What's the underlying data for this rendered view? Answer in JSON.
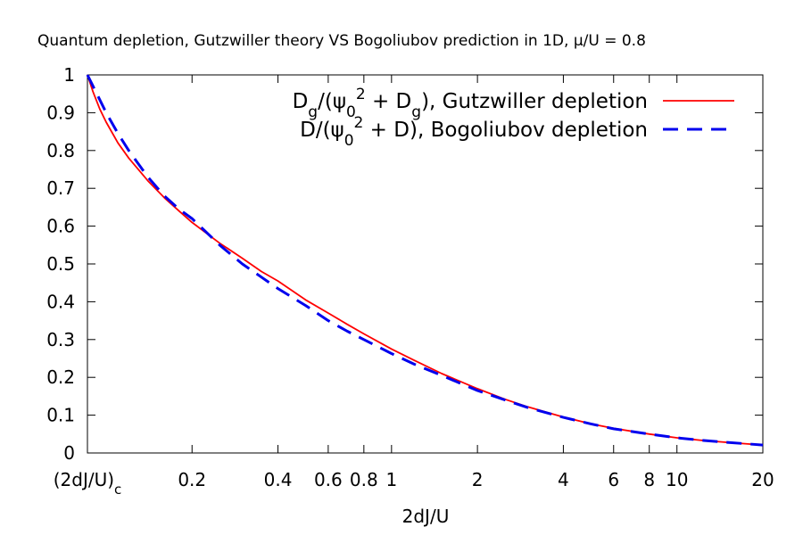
{
  "chart_data": {
    "type": "line",
    "title": "Quantum depletion, Gutzwiller theory VS Bogoliubov prediction in 1D, μ/U = 0.8",
    "xlabel": "2dJ/U",
    "ylabel": "",
    "x_scale": "log",
    "xlim": [
      0.086,
      20
    ],
    "ylim": [
      0,
      1
    ],
    "grid": false,
    "legend_position": "top-right",
    "x_ticks": [
      {
        "value": 0.086,
        "label": "(2dJ/U)",
        "sub": "c"
      },
      {
        "value": 0.2,
        "label": "0.2"
      },
      {
        "value": 0.4,
        "label": "0.4"
      },
      {
        "value": 0.6,
        "label": "0.6"
      },
      {
        "value": 0.8,
        "label": "0.8"
      },
      {
        "value": 1,
        "label": "1"
      },
      {
        "value": 2,
        "label": "2"
      },
      {
        "value": 4,
        "label": "4"
      },
      {
        "value": 6,
        "label": "6"
      },
      {
        "value": 8,
        "label": "8"
      },
      {
        "value": 10,
        "label": "10"
      },
      {
        "value": 20,
        "label": "20"
      }
    ],
    "y_ticks": [
      {
        "value": 0,
        "label": "0"
      },
      {
        "value": 0.1,
        "label": "0.1"
      },
      {
        "value": 0.2,
        "label": "0.2"
      },
      {
        "value": 0.3,
        "label": "0.3"
      },
      {
        "value": 0.4,
        "label": "0.4"
      },
      {
        "value": 0.5,
        "label": "0.5"
      },
      {
        "value": 0.6,
        "label": "0.6"
      },
      {
        "value": 0.7,
        "label": "0.7"
      },
      {
        "value": 0.8,
        "label": "0.8"
      },
      {
        "value": 0.9,
        "label": "0.9"
      },
      {
        "value": 1,
        "label": "1"
      }
    ],
    "series": [
      {
        "name": "Dg/(ψ0^2 + Dg), Gutzwiller depletion",
        "legend": [
          {
            "t": "D"
          },
          {
            "t": "g",
            "sub": true
          },
          {
            "t": "/(ψ"
          },
          {
            "t": "0",
            "sub": true
          },
          {
            "t": "2",
            "sup": true
          },
          {
            "t": " + D"
          },
          {
            "t": "g",
            "sub": true
          },
          {
            "t": "), Gutzwiller depletion"
          }
        ],
        "color": "#ff0000",
        "dash": "solid",
        "x": [
          0.086,
          0.09,
          0.095,
          0.1,
          0.11,
          0.12,
          0.14,
          0.16,
          0.18,
          0.2,
          0.25,
          0.3,
          0.35,
          0.4,
          0.5,
          0.6,
          0.7,
          0.8,
          1,
          1.2,
          1.5,
          2,
          2.5,
          3,
          4,
          5,
          6,
          8,
          10,
          12,
          15,
          20
        ],
        "y": [
          1.0,
          0.955,
          0.91,
          0.875,
          0.82,
          0.78,
          0.72,
          0.675,
          0.64,
          0.61,
          0.555,
          0.515,
          0.48,
          0.455,
          0.405,
          0.37,
          0.34,
          0.315,
          0.275,
          0.245,
          0.21,
          0.17,
          0.142,
          0.122,
          0.095,
          0.077,
          0.065,
          0.05,
          0.04,
          0.034,
          0.028,
          0.021
        ]
      },
      {
        "name": "D/(ψ0^2 + D), Bogoliubov depletion",
        "legend": [
          {
            "t": "D/(ψ"
          },
          {
            "t": "0",
            "sub": true
          },
          {
            "t": "2",
            "sup": true
          },
          {
            "t": " + D), Bogoliubov depletion"
          }
        ],
        "color": "#0000ee",
        "dash": "dashed",
        "x": [
          0.086,
          0.09,
          0.1,
          0.11,
          0.12,
          0.14,
          0.16,
          0.18,
          0.2,
          0.25,
          0.3,
          0.35,
          0.4,
          0.5,
          0.6,
          0.7,
          0.8,
          1,
          1.2,
          1.5,
          2,
          2.5,
          3,
          4,
          5,
          6,
          8,
          10,
          12,
          15,
          20
        ],
        "y": [
          1.0,
          0.97,
          0.9,
          0.845,
          0.8,
          0.73,
          0.68,
          0.645,
          0.62,
          0.55,
          0.5,
          0.465,
          0.435,
          0.39,
          0.35,
          0.322,
          0.3,
          0.263,
          0.235,
          0.205,
          0.165,
          0.14,
          0.12,
          0.094,
          0.077,
          0.064,
          0.05,
          0.04,
          0.034,
          0.028,
          0.021
        ]
      }
    ]
  }
}
